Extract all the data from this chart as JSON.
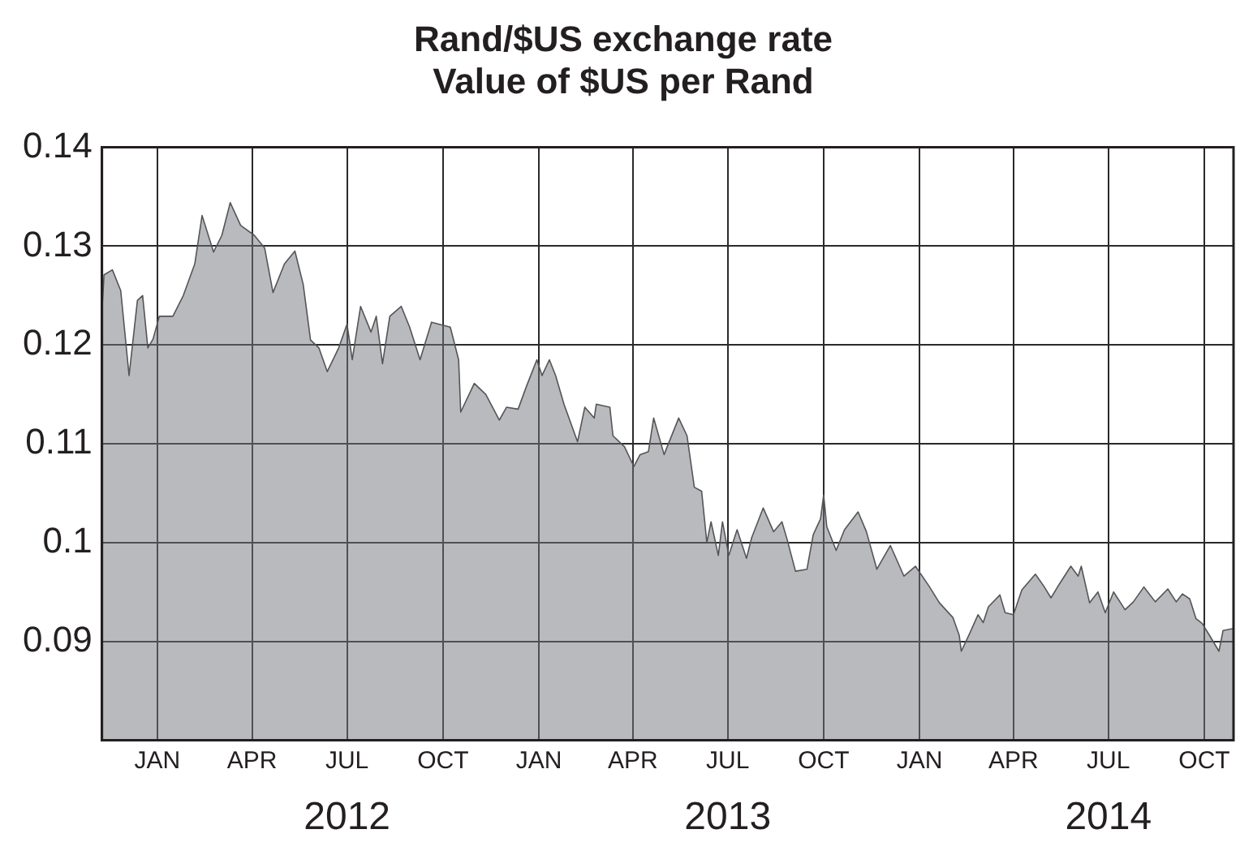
{
  "chart_data": {
    "type": "area",
    "title": "Rand/$US exchange rate",
    "subtitle": "Value of $US per Rand",
    "x": [
      "2011-11-09",
      "2011-11-11",
      "2011-11-19",
      "2011-11-27",
      "2011-12-05",
      "2011-12-13",
      "2011-12-18",
      "2011-12-23",
      "2011-12-28",
      "2012-01-03",
      "2012-01-16",
      "2012-01-26",
      "2012-02-06",
      "2012-02-13",
      "2012-02-24",
      "2012-03-03",
      "2012-03-11",
      "2012-03-21",
      "2012-04-03",
      "2012-04-13",
      "2012-04-21",
      "2012-05-02",
      "2012-05-12",
      "2012-05-20",
      "2012-05-27",
      "2012-06-04",
      "2012-06-12",
      "2012-06-23",
      "2012-07-01",
      "2012-07-06",
      "2012-07-14",
      "2012-07-24",
      "2012-07-29",
      "2012-08-04",
      "2012-08-11",
      "2012-08-22",
      "2012-08-30",
      "2012-09-09",
      "2012-09-20",
      "2012-10-08",
      "2012-10-16",
      "2012-10-18",
      "2012-10-31",
      "2012-11-11",
      "2012-11-24",
      "2012-12-01",
      "2012-12-12",
      "2012-12-20",
      "2012-12-30",
      "2013-01-04",
      "2013-01-11",
      "2013-01-17",
      "2013-01-25",
      "2013-02-07",
      "2013-02-14",
      "2013-02-23",
      "2013-02-25",
      "2013-03-10",
      "2013-03-13",
      "2013-03-24",
      "2013-04-02",
      "2013-04-08",
      "2013-04-16",
      "2013-04-21",
      "2013-05-01",
      "2013-05-15",
      "2013-05-23",
      "2013-05-30",
      "2013-06-06",
      "2013-06-11",
      "2013-06-15",
      "2013-06-22",
      "2013-06-26",
      "2013-07-02",
      "2013-07-10",
      "2013-07-19",
      "2013-07-24",
      "2013-08-04",
      "2013-08-14",
      "2013-08-22",
      "2013-08-27",
      "2013-09-04",
      "2013-09-15",
      "2013-09-21",
      "2013-09-28",
      "2013-10-01",
      "2013-10-04",
      "2013-10-13",
      "2013-10-21",
      "2013-11-03",
      "2013-11-11",
      "2013-11-21",
      "2013-12-04",
      "2013-12-17",
      "2013-12-28",
      "2014-01-10",
      "2014-01-20",
      "2014-02-02",
      "2014-02-08",
      "2014-02-10",
      "2014-02-18",
      "2014-02-26",
      "2014-03-03",
      "2014-03-08",
      "2014-03-19",
      "2014-03-24",
      "2014-04-01",
      "2014-04-09",
      "2014-04-22",
      "2014-04-30",
      "2014-05-07",
      "2014-05-15",
      "2014-05-26",
      "2014-06-02",
      "2014-06-05",
      "2014-06-13",
      "2014-06-21",
      "2014-06-28",
      "2014-07-06",
      "2014-07-17",
      "2014-07-25",
      "2014-08-04",
      "2014-08-15",
      "2014-08-27",
      "2014-09-04",
      "2014-09-10",
      "2014-09-17",
      "2014-09-23",
      "2014-09-29",
      "2014-10-06",
      "2014-10-15",
      "2014-10-19",
      "2014-10-29"
    ],
    "series": [
      {
        "color": "#b9babd",
        "values": [
          0.1234,
          0.1271,
          0.1276,
          0.1255,
          0.1169,
          0.1245,
          0.125,
          0.1197,
          0.1206,
          0.1229,
          0.1229,
          0.125,
          0.1282,
          0.1331,
          0.1294,
          0.1311,
          0.1344,
          0.1321,
          0.1311,
          0.1298,
          0.1253,
          0.1282,
          0.1295,
          0.1261,
          0.1205,
          0.1197,
          0.1173,
          0.1197,
          0.1221,
          0.1185,
          0.1239,
          0.1213,
          0.1229,
          0.1181,
          0.1229,
          0.1239,
          0.1218,
          0.1185,
          0.1223,
          0.1218,
          0.1185,
          0.1132,
          0.1161,
          0.115,
          0.1124,
          0.1137,
          0.1135,
          0.1158,
          0.1185,
          0.1169,
          0.1185,
          0.1169,
          0.114,
          0.1102,
          0.1137,
          0.1126,
          0.114,
          0.1137,
          0.1108,
          0.1097,
          0.1077,
          0.1089,
          0.1092,
          0.1126,
          0.1089,
          0.1126,
          0.1108,
          0.1056,
          0.1052,
          0.1,
          0.1021,
          0.0987,
          0.1021,
          0.0987,
          0.1013,
          0.0984,
          0.1005,
          0.1035,
          0.1011,
          0.1021,
          0.1003,
          0.0971,
          0.0973,
          0.1008,
          0.1024,
          0.1048,
          0.1016,
          0.0992,
          0.1013,
          0.1031,
          0.1011,
          0.0973,
          0.0997,
          0.0966,
          0.0976,
          0.0956,
          0.0939,
          0.0924,
          0.0906,
          0.089,
          0.0908,
          0.0927,
          0.0919,
          0.0935,
          0.0947,
          0.0929,
          0.0927,
          0.0952,
          0.0968,
          0.0956,
          0.0944,
          0.0958,
          0.0976,
          0.0966,
          0.0976,
          0.0939,
          0.095,
          0.0929,
          0.095,
          0.0932,
          0.094,
          0.0955,
          0.094,
          0.0953,
          0.094,
          0.0948,
          0.0943,
          0.0923,
          0.0918,
          0.0906,
          0.089,
          0.0911,
          0.0913
        ]
      }
    ],
    "xlim": [
      "2011-11-09",
      "2014-10-29"
    ],
    "xticks": [
      {
        "value": "2012-01-01",
        "label": "JAN"
      },
      {
        "value": "2012-04-01",
        "label": "APR"
      },
      {
        "value": "2012-07-01",
        "label": "JUL"
      },
      {
        "value": "2012-10-01",
        "label": "OCT"
      },
      {
        "value": "2013-01-01",
        "label": "JAN"
      },
      {
        "value": "2013-04-01",
        "label": "APR"
      },
      {
        "value": "2013-07-01",
        "label": "JUL"
      },
      {
        "value": "2013-10-01",
        "label": "OCT"
      },
      {
        "value": "2014-01-01",
        "label": "JAN"
      },
      {
        "value": "2014-04-01",
        "label": "APR"
      },
      {
        "value": "2014-07-01",
        "label": "JUL"
      },
      {
        "value": "2014-10-01",
        "label": "OCT"
      }
    ],
    "x2lim": [
      "2011-11-09",
      "2014-10-29"
    ],
    "x2ticks": [
      {
        "value": "2012-07-01",
        "label": "2012"
      },
      {
        "value": "2013-07-01",
        "label": "2013"
      },
      {
        "value": "2014-07-01",
        "label": "2014"
      }
    ],
    "ylim": [
      0.08,
      0.14
    ],
    "yticks": [
      0.09,
      0.1,
      0.11,
      0.12,
      0.13,
      0.14
    ],
    "grid": true,
    "legend": false,
    "marker": "none",
    "line_style": "solid"
  }
}
